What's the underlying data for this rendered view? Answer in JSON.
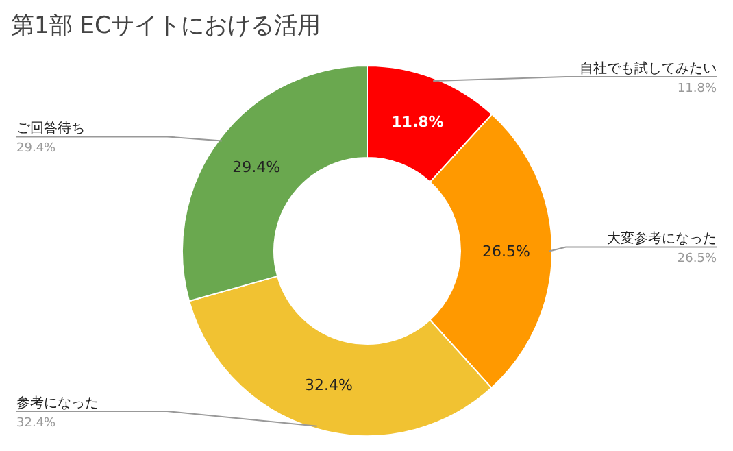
{
  "chart_data": {
    "type": "donut",
    "title": "第1部 ECサイトにおける活用",
    "categories": [
      "自社でも試してみたい",
      "大変参考になった",
      "参考になった",
      "ご回答待ち"
    ],
    "values": [
      11.8,
      26.5,
      32.4,
      29.4
    ],
    "colors": [
      "#ff0000",
      "#ff9900",
      "#f1c232",
      "#6aa84f"
    ],
    "value_labels": [
      "11.8%",
      "26.5%",
      "32.4%",
      "29.4%"
    ],
    "legend": false
  }
}
